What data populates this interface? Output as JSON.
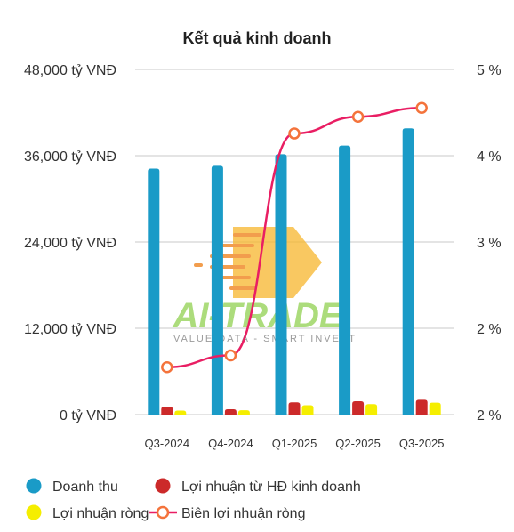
{
  "chart_data": {
    "type": "bar",
    "title": "Kết quả kinh doanh",
    "categories": [
      "Q3-2024",
      "Q4-2024",
      "Q1-2025",
      "Q2-2025",
      "Q3-2025"
    ],
    "left_axis": {
      "ticks": [
        "0 tỷ VNĐ",
        "12,000 tỷ VNĐ",
        "24,000 tỷ VNĐ",
        "36,000 tỷ VNĐ",
        "48,000 tỷ VNĐ"
      ],
      "ylim": [
        0,
        48000
      ]
    },
    "right_axis": {
      "ticks": [
        "2 %",
        "2 %",
        "3 %",
        "4 %",
        "5 %"
      ],
      "ylim": [
        1.5,
        5.0
      ]
    },
    "series": [
      {
        "name": "Doanh thu",
        "type": "bar",
        "axis": "left",
        "color": "#1a9bc7",
        "values": [
          34200,
          34600,
          36200,
          37400,
          39800
        ]
      },
      {
        "name": "Lợi nhuận từ HĐ kinh doanh",
        "type": "bar",
        "axis": "left",
        "color": "#cc2a2a",
        "values": [
          1100,
          750,
          1700,
          1850,
          2050
        ]
      },
      {
        "name": "Lợi nhuận ròng",
        "type": "bar",
        "axis": "left",
        "color": "#f5ee00",
        "values": [
          550,
          600,
          1300,
          1450,
          1650
        ]
      },
      {
        "name": "Biên lợi nhuận ròng",
        "type": "line",
        "axis": "right",
        "color": "#e91e63",
        "marker_edge": "#f4733b",
        "values": [
          1.98,
          2.1,
          4.35,
          4.52,
          4.61
        ]
      }
    ],
    "grid": true,
    "legend": "bottom"
  },
  "watermark": {
    "brand": "AI-TRADE",
    "tagline": "VALUE DATA - SMART INVEST"
  }
}
